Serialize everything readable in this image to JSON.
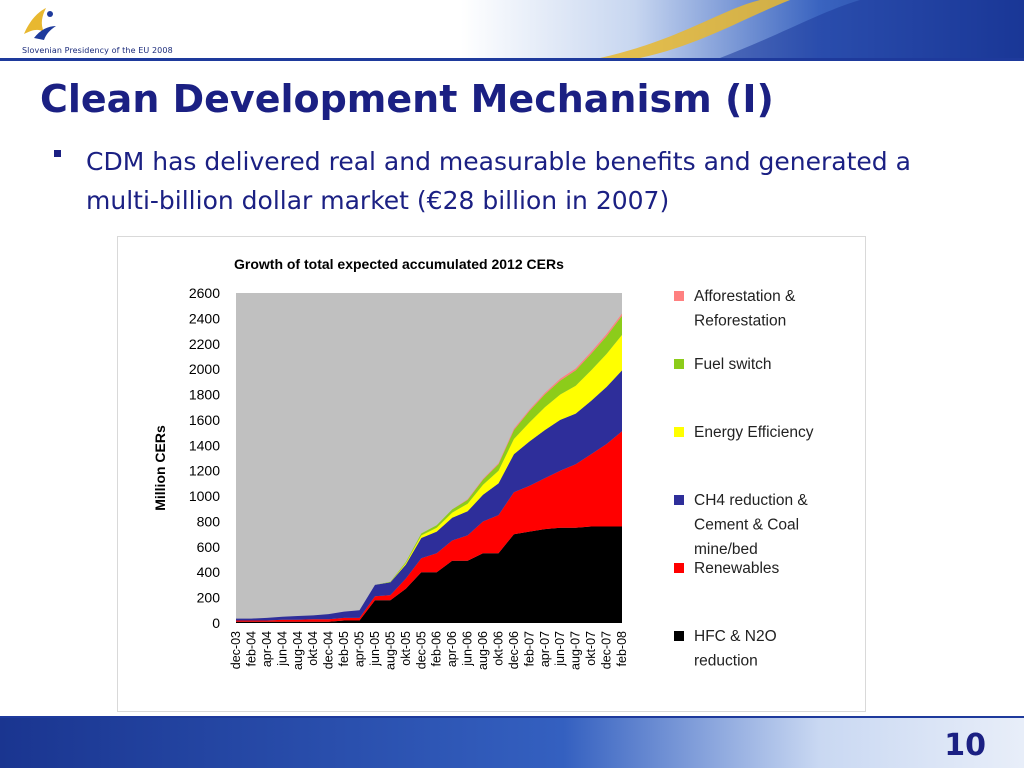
{
  "header": {
    "caption": "Slovenian Presidency of the EU 2008",
    "logo_icon": "eu-presidency-logo-icon"
  },
  "slide": {
    "title": "Clean Development Mechanism (I)",
    "bullet": "CDM has delivered real and measurable benefits and generated a multi-billion dollar market (€28 billion in 2007)",
    "page_number": "10"
  },
  "colors": {
    "title": "#1b2083",
    "header_band": "#1e3a9c",
    "accent_gold": "#e8b830"
  },
  "chart_data": {
    "type": "area",
    "title": "Growth of total expected accumulated 2012 CERs",
    "ylabel": "Million CERs",
    "xlabel": "",
    "ylim": [
      0,
      2600
    ],
    "yticks": [
      0,
      200,
      400,
      600,
      800,
      1000,
      1200,
      1400,
      1600,
      1800,
      2000,
      2200,
      2400,
      2600
    ],
    "plot_background": "#c0c0c0",
    "grid": false,
    "legend_position": "right",
    "stacked": true,
    "categories": [
      "dec-03",
      "feb-04",
      "apr-04",
      "jun-04",
      "aug-04",
      "okt-04",
      "dec-04",
      "feb-05",
      "apr-05",
      "jun-05",
      "aug-05",
      "okt-05",
      "dec-05",
      "feb-06",
      "apr-06",
      "jun-06",
      "aug-06",
      "okt-06",
      "dec-06",
      "feb-07",
      "apr-07",
      "jun-07",
      "aug-07",
      "okt-07",
      "dec-07",
      "feb-08"
    ],
    "series": [
      {
        "name": "HFC & N2O reduction",
        "color": "#000000",
        "values": [
          10,
          10,
          10,
          10,
          10,
          10,
          10,
          20,
          20,
          180,
          180,
          270,
          400,
          400,
          490,
          490,
          550,
          550,
          700,
          720,
          740,
          750,
          750,
          760,
          760,
          760
        ]
      },
      {
        "name": "Renewables",
        "color": "#ff0000",
        "values": [
          10,
          10,
          10,
          15,
          15,
          20,
          20,
          20,
          20,
          30,
          40,
          80,
          110,
          150,
          160,
          200,
          250,
          300,
          330,
          360,
          400,
          450,
          500,
          570,
          650,
          750
        ]
      },
      {
        "name": "CH4 reduction & Cement & Coal mine/bed",
        "color": "#2e2e9a",
        "values": [
          15,
          15,
          20,
          25,
          30,
          30,
          40,
          50,
          60,
          90,
          100,
          110,
          160,
          170,
          180,
          190,
          210,
          250,
          300,
          350,
          380,
          400,
          400,
          420,
          450,
          480
        ]
      },
      {
        "name": "Energy Efficiency",
        "color": "#ffff00",
        "values": [
          0,
          0,
          0,
          0,
          0,
          0,
          0,
          0,
          0,
          0,
          0,
          10,
          20,
          30,
          40,
          60,
          80,
          100,
          120,
          150,
          180,
          200,
          220,
          240,
          260,
          280
        ]
      },
      {
        "name": "Fuel switch",
        "color": "#8ccc1a",
        "values": [
          0,
          0,
          0,
          0,
          0,
          0,
          0,
          0,
          0,
          0,
          5,
          10,
          15,
          20,
          25,
          30,
          40,
          50,
          70,
          90,
          100,
          110,
          120,
          130,
          140,
          150
        ]
      },
      {
        "name": "Afforestation & Reforestation",
        "color": "#ff8080",
        "values": [
          0,
          0,
          0,
          0,
          0,
          0,
          0,
          0,
          0,
          0,
          0,
          0,
          0,
          0,
          0,
          5,
          5,
          8,
          10,
          10,
          12,
          14,
          15,
          16,
          17,
          18
        ]
      }
    ],
    "legend_order": [
      "Afforestation & Reforestation",
      "Fuel switch",
      "Energy Efficiency",
      "CH4 reduction & Cement & Coal mine/bed",
      "Renewables",
      "HFC & N2O reduction"
    ],
    "legend_lines": {
      "Afforestation & Reforestation": [
        "Afforestation &",
        "Reforestation"
      ],
      "Fuel switch": [
        "Fuel switch"
      ],
      "Energy Efficiency": [
        "Energy Efficiency"
      ],
      "CH4 reduction & Cement & Coal mine/bed": [
        "CH4 reduction &",
        "Cement & Coal",
        "mine/bed"
      ],
      "Renewables": [
        "Renewables"
      ],
      "HFC & N2O reduction": [
        "HFC & N2O",
        "reduction"
      ]
    }
  }
}
